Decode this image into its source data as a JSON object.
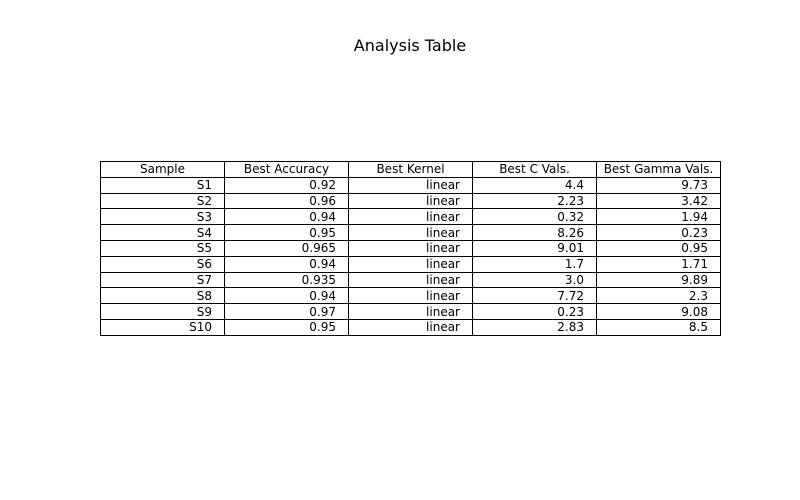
{
  "chart_data": {
    "type": "table",
    "title": "Analysis Table",
    "columns": [
      "Sample",
      "Best Accuracy",
      "Best Kernel",
      "Best C Vals.",
      "Best Gamma Vals."
    ],
    "rows": [
      [
        "S1",
        "0.92",
        "linear",
        "4.4",
        "9.73"
      ],
      [
        "S2",
        "0.96",
        "linear",
        "2.23",
        "3.42"
      ],
      [
        "S3",
        "0.94",
        "linear",
        "0.32",
        "1.94"
      ],
      [
        "S4",
        "0.95",
        "linear",
        "8.26",
        "0.23"
      ],
      [
        "S5",
        "0.965",
        "linear",
        "9.01",
        "0.95"
      ],
      [
        "S6",
        "0.94",
        "linear",
        "1.7",
        "1.71"
      ],
      [
        "S7",
        "0.935",
        "linear",
        "3.0",
        "9.89"
      ],
      [
        "S8",
        "0.94",
        "linear",
        "7.72",
        "2.3"
      ],
      [
        "S9",
        "0.97",
        "linear",
        "0.23",
        "9.08"
      ],
      [
        "S10",
        "0.95",
        "linear",
        "2.83",
        "8.5"
      ]
    ]
  }
}
